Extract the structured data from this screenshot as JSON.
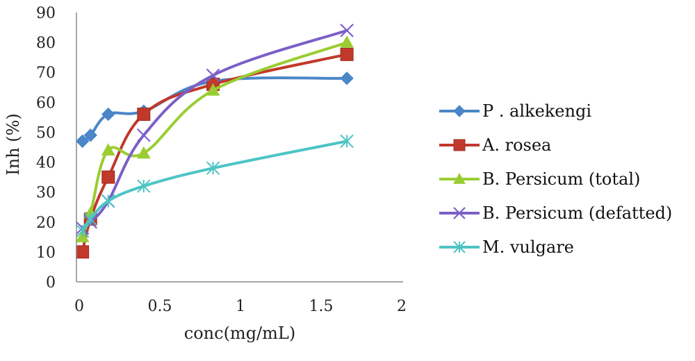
{
  "chart_data": {
    "type": "line",
    "title": "",
    "xlabel": "conc(mg/mL)",
    "ylabel": "Inh (%)",
    "xlim": [
      0,
      2
    ],
    "ylim": [
      0,
      90
    ],
    "xticks": [
      "0",
      "0.5",
      "1",
      "1.5",
      "2"
    ],
    "yticks": [
      "0",
      "10",
      "20",
      "30",
      "40",
      "50",
      "60",
      "70",
      "80",
      "90"
    ],
    "grid": false,
    "legend_position": "right",
    "series": [
      {
        "name": "P . alkekengi",
        "color": "#4a86c8",
        "marker": "diamond",
        "x": [
          0.02,
          0.07,
          0.18,
          0.4,
          0.83,
          1.66
        ],
        "y": [
          47,
          49,
          56,
          57,
          67,
          68
        ]
      },
      {
        "name": "A. rosea",
        "color": "#c0392b",
        "marker": "square",
        "x": [
          0.02,
          0.07,
          0.18,
          0.4,
          0.83,
          1.66
        ],
        "y": [
          10,
          21,
          35,
          56,
          66,
          76
        ]
      },
      {
        "name": "B. Persicum (total)",
        "color": "#9acd32",
        "marker": "triangle",
        "x": [
          0.02,
          0.07,
          0.18,
          0.4,
          0.83,
          1.66
        ],
        "y": [
          15,
          23,
          44,
          43,
          64,
          80
        ]
      },
      {
        "name": "B. Persicum (defatted)",
        "color": "#7b5fc7",
        "marker": "x",
        "x": [
          0.02,
          0.07,
          0.18,
          0.4,
          0.83,
          1.66
        ],
        "y": [
          18,
          20,
          27,
          49,
          69,
          84
        ]
      },
      {
        "name": "M. vulgare",
        "color": "#4dc4c4",
        "marker": "star",
        "x": [
          0.02,
          0.07,
          0.18,
          0.4,
          0.83,
          1.66
        ],
        "y": [
          17,
          21,
          27,
          32,
          38,
          47
        ]
      }
    ]
  }
}
